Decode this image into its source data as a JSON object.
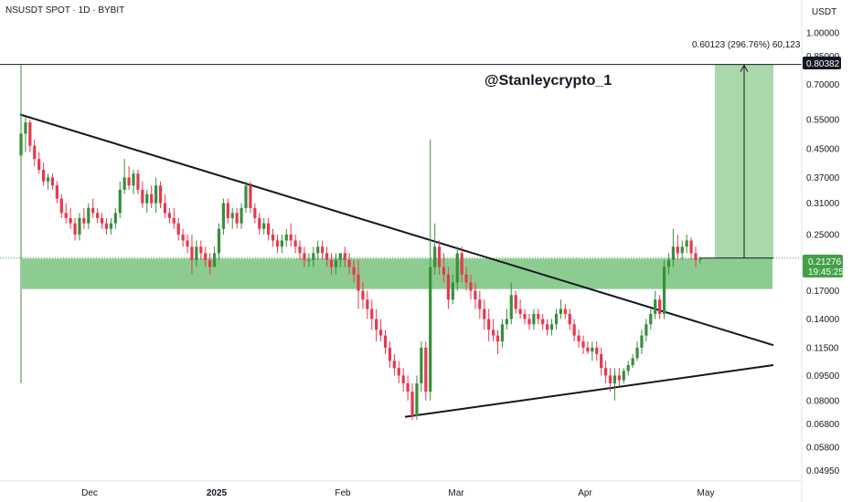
{
  "header": {
    "symbol_text": "NSUSDT SPOT · 1D · BYBIT"
  },
  "axis": {
    "currency_label": "USDT"
  },
  "watermark": {
    "text": "@Stanleycrypto_1"
  },
  "measure": {
    "label": "0.60123 (296.76%) 60,123"
  },
  "badges": {
    "top_price": "0.80382",
    "current_price": "0.21276",
    "countdown": "19:45:25"
  },
  "colors": {
    "up": "#388e3c",
    "down": "#e53950",
    "zone": "#81c784",
    "target": "#a5d6a7",
    "current_badge": "#43a047",
    "top_badge": "#131722"
  },
  "chart_data": {
    "type": "candlestick",
    "scale": "log",
    "y_ticks": [
      "1.00000",
      "0.85000",
      "0.70000",
      "0.55000",
      "0.45000",
      "0.37000",
      "0.31000",
      "0.25000",
      "0.21000",
      "0.17000",
      "0.14000",
      "0.11500",
      "0.09500",
      "0.08000",
      "0.06800",
      "0.05800",
      "0.04950"
    ],
    "x_ticks": [
      "Dec",
      "2025",
      "Feb",
      "Mar",
      "Apr",
      "May"
    ],
    "ylim": [
      0.0475,
      1.09
    ],
    "ohlc": [
      [
        0.43,
        0.8,
        0.09,
        0.5
      ],
      [
        0.5,
        0.56,
        0.44,
        0.54
      ],
      [
        0.54,
        0.55,
        0.44,
        0.46
      ],
      [
        0.46,
        0.48,
        0.4,
        0.42
      ],
      [
        0.42,
        0.44,
        0.38,
        0.39
      ],
      [
        0.39,
        0.41,
        0.35,
        0.36
      ],
      [
        0.36,
        0.38,
        0.34,
        0.37
      ],
      [
        0.37,
        0.38,
        0.34,
        0.35
      ],
      [
        0.35,
        0.36,
        0.31,
        0.32
      ],
      [
        0.32,
        0.33,
        0.28,
        0.29
      ],
      [
        0.29,
        0.31,
        0.27,
        0.28
      ],
      [
        0.28,
        0.3,
        0.26,
        0.27
      ],
      [
        0.27,
        0.28,
        0.24,
        0.25
      ],
      [
        0.25,
        0.29,
        0.24,
        0.28
      ],
      [
        0.28,
        0.3,
        0.26,
        0.27
      ],
      [
        0.27,
        0.31,
        0.26,
        0.3
      ],
      [
        0.3,
        0.32,
        0.28,
        0.29
      ],
      [
        0.29,
        0.3,
        0.27,
        0.28
      ],
      [
        0.28,
        0.29,
        0.26,
        0.27
      ],
      [
        0.27,
        0.28,
        0.25,
        0.26
      ],
      [
        0.26,
        0.28,
        0.25,
        0.27
      ],
      [
        0.27,
        0.3,
        0.26,
        0.29
      ],
      [
        0.29,
        0.36,
        0.28,
        0.34
      ],
      [
        0.34,
        0.42,
        0.33,
        0.37
      ],
      [
        0.37,
        0.4,
        0.34,
        0.35
      ],
      [
        0.35,
        0.39,
        0.33,
        0.38
      ],
      [
        0.38,
        0.39,
        0.33,
        0.34
      ],
      [
        0.34,
        0.36,
        0.3,
        0.31
      ],
      [
        0.31,
        0.34,
        0.29,
        0.33
      ],
      [
        0.33,
        0.35,
        0.3,
        0.31
      ],
      [
        0.31,
        0.37,
        0.29,
        0.35
      ],
      [
        0.35,
        0.36,
        0.3,
        0.31
      ],
      [
        0.31,
        0.33,
        0.28,
        0.29
      ],
      [
        0.29,
        0.3,
        0.27,
        0.28
      ],
      [
        0.28,
        0.3,
        0.26,
        0.27
      ],
      [
        0.27,
        0.28,
        0.24,
        0.25
      ],
      [
        0.25,
        0.26,
        0.23,
        0.24
      ],
      [
        0.24,
        0.25,
        0.22,
        0.23
      ],
      [
        0.23,
        0.25,
        0.19,
        0.21
      ],
      [
        0.21,
        0.24,
        0.2,
        0.23
      ],
      [
        0.23,
        0.24,
        0.21,
        0.22
      ],
      [
        0.22,
        0.23,
        0.2,
        0.21
      ],
      [
        0.21,
        0.22,
        0.19,
        0.2
      ],
      [
        0.2,
        0.23,
        0.2,
        0.22
      ],
      [
        0.22,
        0.27,
        0.21,
        0.26
      ],
      [
        0.26,
        0.32,
        0.25,
        0.31
      ],
      [
        0.31,
        0.32,
        0.27,
        0.28
      ],
      [
        0.28,
        0.3,
        0.26,
        0.29
      ],
      [
        0.29,
        0.3,
        0.26,
        0.27
      ],
      [
        0.27,
        0.31,
        0.26,
        0.3
      ],
      [
        0.3,
        0.36,
        0.29,
        0.35
      ],
      [
        0.35,
        0.36,
        0.29,
        0.3
      ],
      [
        0.3,
        0.31,
        0.27,
        0.28
      ],
      [
        0.28,
        0.29,
        0.25,
        0.26
      ],
      [
        0.26,
        0.28,
        0.25,
        0.27
      ],
      [
        0.27,
        0.28,
        0.24,
        0.25
      ],
      [
        0.25,
        0.26,
        0.23,
        0.24
      ],
      [
        0.24,
        0.25,
        0.22,
        0.23
      ],
      [
        0.23,
        0.25,
        0.22,
        0.24
      ],
      [
        0.24,
        0.26,
        0.23,
        0.25
      ],
      [
        0.25,
        0.27,
        0.23,
        0.24
      ],
      [
        0.24,
        0.25,
        0.22,
        0.23
      ],
      [
        0.23,
        0.24,
        0.21,
        0.22
      ],
      [
        0.22,
        0.23,
        0.2,
        0.21
      ],
      [
        0.21,
        0.22,
        0.2,
        0.21
      ],
      [
        0.21,
        0.23,
        0.2,
        0.22
      ],
      [
        0.22,
        0.24,
        0.21,
        0.23
      ],
      [
        0.23,
        0.24,
        0.21,
        0.22
      ],
      [
        0.22,
        0.23,
        0.2,
        0.21
      ],
      [
        0.21,
        0.22,
        0.19,
        0.2
      ],
      [
        0.2,
        0.22,
        0.19,
        0.21
      ],
      [
        0.21,
        0.22,
        0.2,
        0.22
      ],
      [
        0.22,
        0.23,
        0.2,
        0.21
      ],
      [
        0.21,
        0.22,
        0.19,
        0.2
      ],
      [
        0.2,
        0.21,
        0.18,
        0.19
      ],
      [
        0.19,
        0.21,
        0.15,
        0.17
      ],
      [
        0.17,
        0.18,
        0.15,
        0.16
      ],
      [
        0.16,
        0.17,
        0.14,
        0.15
      ],
      [
        0.15,
        0.16,
        0.13,
        0.14
      ],
      [
        0.14,
        0.15,
        0.12,
        0.13
      ],
      [
        0.13,
        0.14,
        0.12,
        0.125
      ],
      [
        0.125,
        0.13,
        0.11,
        0.115
      ],
      [
        0.115,
        0.12,
        0.1,
        0.105
      ],
      [
        0.105,
        0.11,
        0.095,
        0.1
      ],
      [
        0.1,
        0.105,
        0.09,
        0.095
      ],
      [
        0.095,
        0.1,
        0.085,
        0.09
      ],
      [
        0.09,
        0.095,
        0.08,
        0.085
      ],
      [
        0.085,
        0.09,
        0.07,
        0.072
      ],
      [
        0.072,
        0.095,
        0.07,
        0.09
      ],
      [
        0.09,
        0.12,
        0.085,
        0.115
      ],
      [
        0.115,
        0.12,
        0.08,
        0.085
      ],
      [
        0.085,
        0.48,
        0.08,
        0.2
      ],
      [
        0.2,
        0.27,
        0.19,
        0.23
      ],
      [
        0.23,
        0.24,
        0.19,
        0.2
      ],
      [
        0.2,
        0.22,
        0.18,
        0.19
      ],
      [
        0.19,
        0.2,
        0.15,
        0.16
      ],
      [
        0.16,
        0.19,
        0.155,
        0.18
      ],
      [
        0.18,
        0.23,
        0.17,
        0.22
      ],
      [
        0.22,
        0.23,
        0.18,
        0.19
      ],
      [
        0.19,
        0.2,
        0.17,
        0.18
      ],
      [
        0.18,
        0.19,
        0.16,
        0.17
      ],
      [
        0.17,
        0.18,
        0.15,
        0.16
      ],
      [
        0.16,
        0.17,
        0.14,
        0.15
      ],
      [
        0.15,
        0.16,
        0.13,
        0.14
      ],
      [
        0.14,
        0.15,
        0.12,
        0.13
      ],
      [
        0.13,
        0.14,
        0.12,
        0.125
      ],
      [
        0.125,
        0.13,
        0.11,
        0.12
      ],
      [
        0.12,
        0.14,
        0.115,
        0.135
      ],
      [
        0.135,
        0.15,
        0.13,
        0.14
      ],
      [
        0.14,
        0.18,
        0.135,
        0.165
      ],
      [
        0.165,
        0.17,
        0.145,
        0.15
      ],
      [
        0.15,
        0.16,
        0.14,
        0.145
      ],
      [
        0.145,
        0.15,
        0.135,
        0.14
      ],
      [
        0.14,
        0.145,
        0.13,
        0.135
      ],
      [
        0.135,
        0.15,
        0.13,
        0.145
      ],
      [
        0.145,
        0.15,
        0.135,
        0.14
      ],
      [
        0.14,
        0.145,
        0.13,
        0.135
      ],
      [
        0.135,
        0.14,
        0.125,
        0.13
      ],
      [
        0.13,
        0.14,
        0.125,
        0.135
      ],
      [
        0.135,
        0.15,
        0.13,
        0.145
      ],
      [
        0.145,
        0.16,
        0.14,
        0.15
      ],
      [
        0.15,
        0.155,
        0.14,
        0.145
      ],
      [
        0.145,
        0.15,
        0.13,
        0.135
      ],
      [
        0.135,
        0.14,
        0.12,
        0.125
      ],
      [
        0.125,
        0.13,
        0.115,
        0.12
      ],
      [
        0.12,
        0.125,
        0.11,
        0.115
      ],
      [
        0.115,
        0.12,
        0.11,
        0.112
      ],
      [
        0.112,
        0.12,
        0.105,
        0.115
      ],
      [
        0.115,
        0.12,
        0.105,
        0.11
      ],
      [
        0.11,
        0.115,
        0.095,
        0.1
      ],
      [
        0.1,
        0.105,
        0.09,
        0.095
      ],
      [
        0.095,
        0.1,
        0.085,
        0.09
      ],
      [
        0.09,
        0.1,
        0.08,
        0.095
      ],
      [
        0.095,
        0.1,
        0.088,
        0.092
      ],
      [
        0.092,
        0.1,
        0.09,
        0.098
      ],
      [
        0.098,
        0.105,
        0.095,
        0.102
      ],
      [
        0.102,
        0.11,
        0.1,
        0.107
      ],
      [
        0.107,
        0.12,
        0.105,
        0.115
      ],
      [
        0.115,
        0.13,
        0.11,
        0.125
      ],
      [
        0.125,
        0.14,
        0.12,
        0.135
      ],
      [
        0.135,
        0.15,
        0.13,
        0.145
      ],
      [
        0.145,
        0.17,
        0.14,
        0.16
      ],
      [
        0.16,
        0.165,
        0.14,
        0.145
      ],
      [
        0.145,
        0.21,
        0.14,
        0.2
      ],
      [
        0.2,
        0.22,
        0.19,
        0.21
      ],
      [
        0.21,
        0.26,
        0.2,
        0.23
      ],
      [
        0.23,
        0.25,
        0.21,
        0.22
      ],
      [
        0.22,
        0.24,
        0.21,
        0.23
      ],
      [
        0.23,
        0.25,
        0.22,
        0.24
      ],
      [
        0.24,
        0.245,
        0.21,
        0.22
      ],
      [
        0.22,
        0.23,
        0.2,
        0.21
      ],
      [
        0.21,
        0.215,
        0.205,
        0.21276
      ]
    ]
  }
}
